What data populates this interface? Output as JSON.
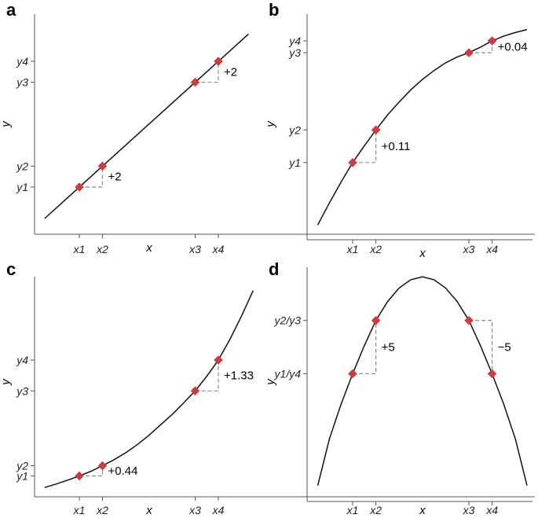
{
  "chart_data": [
    {
      "panel": "a",
      "type": "line",
      "xlabel": "x",
      "ylabel": "y",
      "x_ticks": [
        "x1",
        "x2",
        "x3",
        "x4"
      ],
      "y_ticks": [
        "y1",
        "y2",
        "y3",
        "y4"
      ],
      "points": [
        {
          "x": 1,
          "y": 1
        },
        {
          "x": 2,
          "y": 3
        },
        {
          "x": 6,
          "y": 11
        },
        {
          "x": 7,
          "y": 13
        }
      ],
      "curve": {
        "x": [
          -0.5,
          8.3
        ],
        "y": [
          -2,
          15.6
        ]
      },
      "annotations": [
        {
          "label": "+2",
          "from": 0,
          "to": 1
        },
        {
          "label": "+2",
          "from": 2,
          "to": 3
        }
      ],
      "ylim": [
        -3.5,
        17.5
      ]
    },
    {
      "panel": "b",
      "type": "line",
      "xlabel": "x",
      "ylabel": "y",
      "x_ticks": [
        "x1",
        "x2",
        "x3",
        "x4"
      ],
      "y_ticks": [
        "y1",
        "y2",
        "y3",
        "y4"
      ],
      "points": [
        {
          "x": 1,
          "y": 0.0
        },
        {
          "x": 2,
          "y": 0.11
        },
        {
          "x": 6,
          "y": 0.37
        },
        {
          "x": 7,
          "y": 0.41
        }
      ],
      "curve": {
        "x": [
          -0.5,
          0,
          0.5,
          1,
          1.5,
          2,
          2.5,
          3,
          3.5,
          4,
          4.5,
          5,
          5.5,
          6,
          6.5,
          7,
          7.5,
          8,
          8.5
        ],
        "y": [
          -0.21,
          -0.136,
          -0.066,
          0.0,
          0.056,
          0.11,
          0.16,
          0.204,
          0.245,
          0.28,
          0.31,
          0.336,
          0.356,
          0.37,
          0.389,
          0.41,
          0.426,
          0.438,
          0.448
        ]
      },
      "annotations": [
        {
          "label": "+0.11",
          "from": 0,
          "to": 1
        },
        {
          "label": "+0.04",
          "from": 2,
          "to": 3
        }
      ],
      "ylim": [
        -0.26,
        0.5
      ]
    },
    {
      "panel": "c",
      "type": "line",
      "xlabel": "x",
      "ylabel": "y",
      "x_ticks": [
        "x1",
        "x2",
        "x3",
        "x4"
      ],
      "y_ticks": [
        "y1",
        "y2",
        "y3",
        "y4"
      ],
      "points": [
        {
          "x": 1,
          "y": 0.0
        },
        {
          "x": 2,
          "y": 0.44
        },
        {
          "x": 6,
          "y": 3.67
        },
        {
          "x": 7,
          "y": 5.0
        }
      ],
      "curve": {
        "x": [
          -0.5,
          0,
          0.5,
          1,
          1.5,
          2,
          2.5,
          3,
          3.5,
          4,
          4.5,
          5,
          5.5,
          6,
          6.5,
          7,
          7.5,
          8,
          8.5
        ],
        "y": [
          -0.5,
          -0.35,
          -0.18,
          0.0,
          0.2,
          0.44,
          0.7,
          1.0,
          1.35,
          1.75,
          2.2,
          2.65,
          3.15,
          3.67,
          4.3,
          5.0,
          5.9,
          6.9,
          8.0
        ]
      },
      "annotations": [
        {
          "label": "+0.44",
          "from": 0,
          "to": 1
        },
        {
          "label": "+1.33",
          "from": 2,
          "to": 3
        }
      ],
      "ylim": [
        -0.9,
        8.6
      ]
    },
    {
      "panel": "d",
      "type": "line",
      "xlabel": "x",
      "ylabel": "y",
      "x_ticks": [
        "x1",
        "x2",
        "x3",
        "x4"
      ],
      "y_ticks": [
        "y1/y4",
        "y2/y3"
      ],
      "y_tick_values": [
        0,
        5
      ],
      "points": [
        {
          "x": 1,
          "y": 0
        },
        {
          "x": 2,
          "y": 5
        },
        {
          "x": 6,
          "y": 5
        },
        {
          "x": 7,
          "y": 0
        }
      ],
      "curve": {
        "x": [
          -0.5,
          0,
          0.5,
          1,
          1.5,
          2,
          2.5,
          3,
          3.5,
          4,
          4.5,
          5,
          5.5,
          6,
          6.5,
          7,
          7.5,
          8,
          8.5
        ],
        "y": [
          -10.5,
          -6.125,
          -2.875,
          0,
          2.625,
          5,
          6.775,
          8.05,
          8.825,
          9.1,
          8.825,
          8.05,
          6.775,
          5,
          2.625,
          0,
          -2.875,
          -6.125,
          -10.5
        ]
      },
      "annotations": [
        {
          "label": "+5",
          "from": 0,
          "to": 1
        },
        {
          "label": "−5",
          "from": 2,
          "to": 3
        }
      ],
      "ylim": [
        -12,
        10
      ]
    }
  ]
}
